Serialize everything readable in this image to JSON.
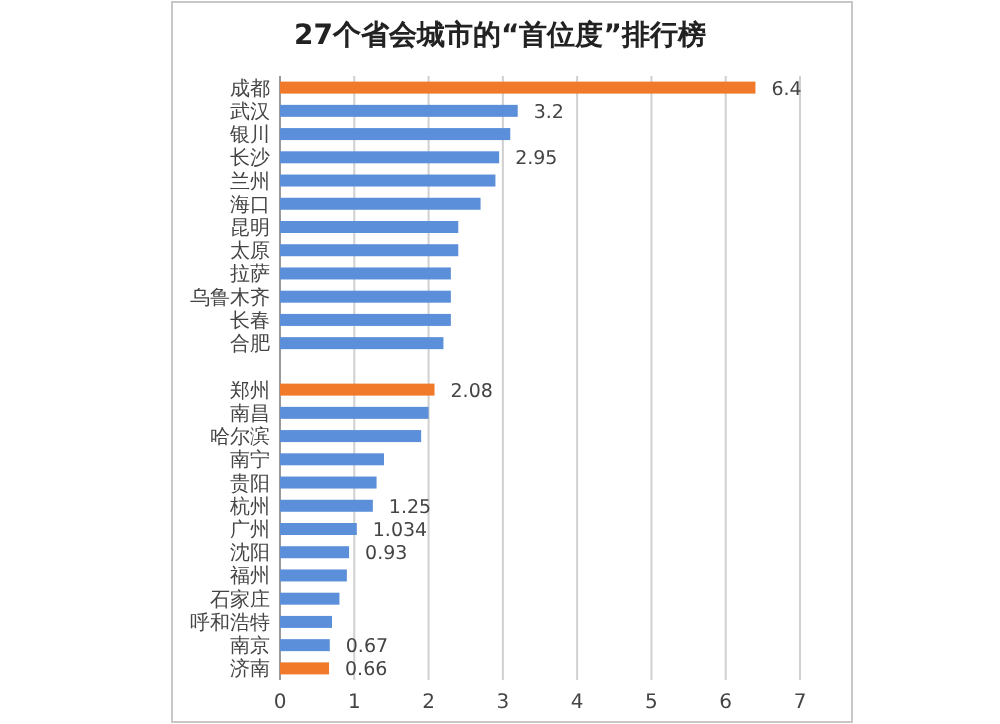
{
  "chart_data": {
    "type": "bar",
    "orientation": "horizontal",
    "title": "27个省会城市的“首位度”排行榜",
    "categories": [
      "成都",
      "武汉",
      "银川",
      "长沙",
      "兰州",
      "海口",
      "昆明",
      "太原",
      "拉萨",
      "乌鲁木齐",
      "长春",
      "合肥",
      null,
      "郑州",
      "南昌",
      "哈尔滨",
      "南宁",
      "贵阳",
      "杭州",
      "广州",
      "沈阳",
      "福州",
      "石家庄",
      "呼和浩特",
      "南京",
      "济南"
    ],
    "values": [
      6.4,
      3.2,
      3.1,
      2.95,
      2.9,
      2.7,
      2.4,
      2.4,
      2.3,
      2.3,
      2.3,
      2.2,
      null,
      2.08,
      2.0,
      1.9,
      1.4,
      1.3,
      1.25,
      1.034,
      0.93,
      0.9,
      0.8,
      0.7,
      0.67,
      0.66
    ],
    "value_labels": [
      "6.4",
      "3.2",
      null,
      "2.95",
      null,
      null,
      null,
      null,
      null,
      null,
      null,
      null,
      null,
      "2.08",
      null,
      null,
      null,
      null,
      "1.25",
      "1.034",
      "0.93",
      null,
      null,
      null,
      "0.67",
      "0.66"
    ],
    "colors": [
      "#f07a2a",
      "#5b8fd9",
      "#5b8fd9",
      "#5b8fd9",
      "#5b8fd9",
      "#5b8fd9",
      "#5b8fd9",
      "#5b8fd9",
      "#5b8fd9",
      "#5b8fd9",
      "#5b8fd9",
      "#5b8fd9",
      null,
      "#f07a2a",
      "#5b8fd9",
      "#5b8fd9",
      "#5b8fd9",
      "#5b8fd9",
      "#5b8fd9",
      "#5b8fd9",
      "#5b8fd9",
      "#5b8fd9",
      "#5b8fd9",
      "#5b8fd9",
      "#5b8fd9",
      "#f07a2a"
    ],
    "xlim": [
      0,
      7
    ],
    "xticks": [
      0,
      1,
      2,
      3,
      4,
      5,
      6,
      7
    ],
    "grid": "x"
  }
}
